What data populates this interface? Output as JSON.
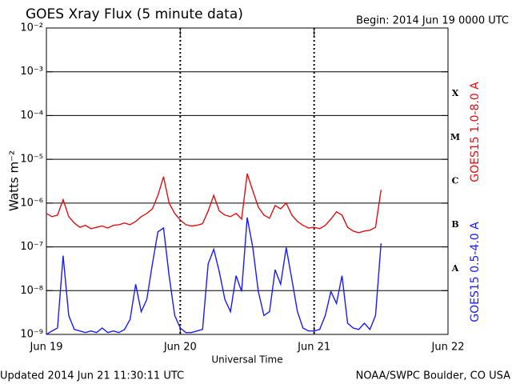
{
  "chart_data": {
    "type": "line",
    "title": "GOES Xray Flux (5 minute data)",
    "subtitle": "Begin:  2014 Jun 19 0000 UTC",
    "xlabel": "Universal Time",
    "ylabel": "Watts m⁻²",
    "footer_left": "Updated 2014 Jun 21 11:30:11 UTC",
    "footer_right": "NOAA/SWPC Boulder, CO USA",
    "ylog": true,
    "grid": true,
    "xlim": [
      0,
      72
    ],
    "xticks": [
      {
        "value": 0,
        "label": "Jun 19"
      },
      {
        "value": 24,
        "label": "Jun 20"
      },
      {
        "value": 48,
        "label": "Jun 21"
      },
      {
        "value": 72,
        "label": "Jun 22"
      }
    ],
    "ylim": [
      1e-09,
      0.01
    ],
    "yticks": [
      {
        "value": 1e-09,
        "label": "10⁻⁹"
      },
      {
        "value": 1e-08,
        "label": "10⁻⁸"
      },
      {
        "value": 1e-07,
        "label": "10⁻⁷"
      },
      {
        "value": 1e-06,
        "label": "10⁻⁶"
      },
      {
        "value": 1e-05,
        "label": "10⁻⁵"
      },
      {
        "value": 0.0001,
        "label": "10⁻⁴"
      },
      {
        "value": 0.001,
        "label": "10⁻³"
      },
      {
        "value": 0.01,
        "label": "10⁻²"
      }
    ],
    "flare_classes": [
      {
        "text": "A",
        "value": 1e-08
      },
      {
        "text": "B",
        "value": 1e-07
      },
      {
        "text": "C",
        "value": 1e-06
      },
      {
        "text": "M",
        "value": 1e-05
      },
      {
        "text": "X",
        "value": 0.0001
      }
    ],
    "x": [
      0,
      1,
      2,
      3,
      4,
      5,
      6,
      7,
      8,
      9,
      10,
      11,
      12,
      13,
      14,
      15,
      16,
      17,
      18,
      19,
      20,
      21,
      22,
      23,
      24,
      25,
      26,
      27,
      28,
      29,
      30,
      31,
      32,
      33,
      34,
      35,
      36,
      37,
      38,
      39,
      40,
      41,
      42,
      43,
      44,
      45,
      46,
      47,
      48,
      49,
      50,
      51,
      52,
      53,
      54,
      55,
      56,
      57,
      58,
      59,
      60
    ],
    "series": [
      {
        "name": "GOES15 1.0-8.0 A",
        "color": "#e01010",
        "values": [
          5.8e-07,
          4.9e-07,
          5.3e-07,
          1.2e-06,
          4.9e-07,
          3.5e-07,
          2.8e-07,
          3.1e-07,
          2.6e-07,
          2.8e-07,
          3e-07,
          2.7e-07,
          3.1e-07,
          3.2e-07,
          3.5e-07,
          3.2e-07,
          3.8e-07,
          4.9e-07,
          5.8e-07,
          7.4e-07,
          1.5e-06,
          4e-06,
          1e-06,
          5.8e-07,
          4.1e-07,
          3.2e-07,
          3e-07,
          3.1e-07,
          3.4e-07,
          6.6e-07,
          1.5e-06,
          6.6e-07,
          5.3e-07,
          4.9e-07,
          5.8e-07,
          4.3e-07,
          4.7e-06,
          1.9e-06,
          8.1e-07,
          5.3e-07,
          4.5e-07,
          8.8e-07,
          7.4e-07,
          1e-06,
          5.3e-07,
          3.8e-07,
          3.1e-07,
          2.7e-07,
          2.8e-07,
          2.6e-07,
          3.1e-07,
          4.3e-07,
          6.3e-07,
          5.3e-07,
          2.8e-07,
          2.3e-07,
          2.1e-07,
          2.3e-07,
          2.4e-07,
          2.8e-07,
          2e-06
        ]
      },
      {
        "name": "GOES15 0.5-4.0 A",
        "color": "#1a1aff",
        "values": [
          1e-09,
          1.2e-09,
          1.4e-09,
          6.3e-08,
          2.7e-09,
          1.3e-09,
          1.2e-09,
          1.1e-09,
          1.2e-09,
          1.1e-09,
          1.4e-09,
          1.1e-09,
          1.2e-09,
          1.1e-09,
          1.3e-09,
          2.2e-09,
          1.4e-08,
          3.3e-09,
          6.3e-09,
          4.1e-08,
          2.2e-07,
          2.7e-07,
          2.2e-08,
          2.7e-09,
          1.4e-09,
          1.1e-09,
          1.1e-09,
          1.2e-09,
          1.3e-09,
          4.1e-08,
          8.8e-08,
          2.7e-08,
          6.3e-09,
          3.3e-09,
          2.2e-08,
          9.6e-09,
          4.7e-07,
          9.6e-08,
          9.6e-09,
          2.7e-09,
          3.3e-09,
          3e-08,
          1.4e-08,
          9.6e-08,
          1.8e-08,
          3.3e-09,
          1.4e-09,
          1.2e-09,
          1.2e-09,
          1.3e-09,
          2.7e-09,
          9.6e-09,
          5.1e-09,
          2.2e-08,
          1.8e-09,
          1.4e-09,
          1.3e-09,
          1.8e-09,
          1.3e-09,
          2.7e-09,
          1.2e-07
        ]
      }
    ]
  }
}
